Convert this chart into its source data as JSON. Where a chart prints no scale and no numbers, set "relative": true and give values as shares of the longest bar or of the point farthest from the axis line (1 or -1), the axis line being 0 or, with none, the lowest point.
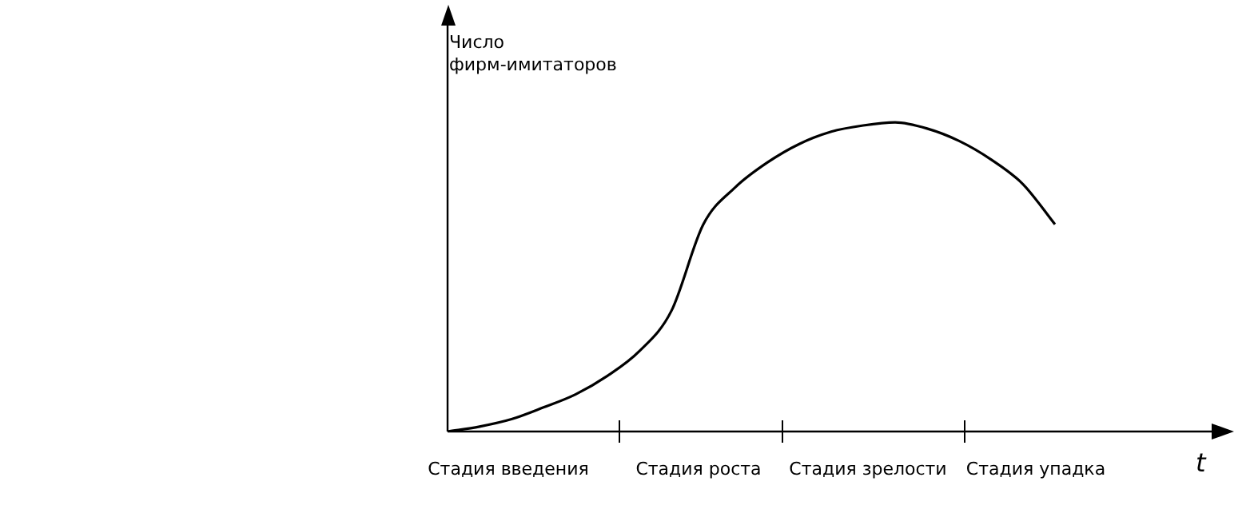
{
  "chart_data": {
    "type": "line",
    "relative": true,
    "ylabel": "Число фирм-имитаторов",
    "xlabel": "t",
    "color": "#000000",
    "marker": "none",
    "line_style": "solid",
    "grid": false,
    "legend": false,
    "annotations": [
      "Стадия введения",
      "Стадия роста",
      "Стадия зрелости",
      "Стадия упадка"
    ],
    "categories": [
      null,
      null,
      null,
      null,
      null,
      null,
      null,
      null,
      null,
      null,
      null,
      null,
      null,
      null,
      null,
      null,
      null,
      null,
      null,
      null
    ],
    "values": [
      0,
      0.016,
      0.04,
      0.078,
      0.12,
      0.18,
      0.26,
      0.39,
      0.67,
      0.79,
      0.87,
      0.93,
      0.97,
      0.99,
      1,
      0.98,
      0.94,
      0.88,
      0.8,
      0.67
    ]
  }
}
